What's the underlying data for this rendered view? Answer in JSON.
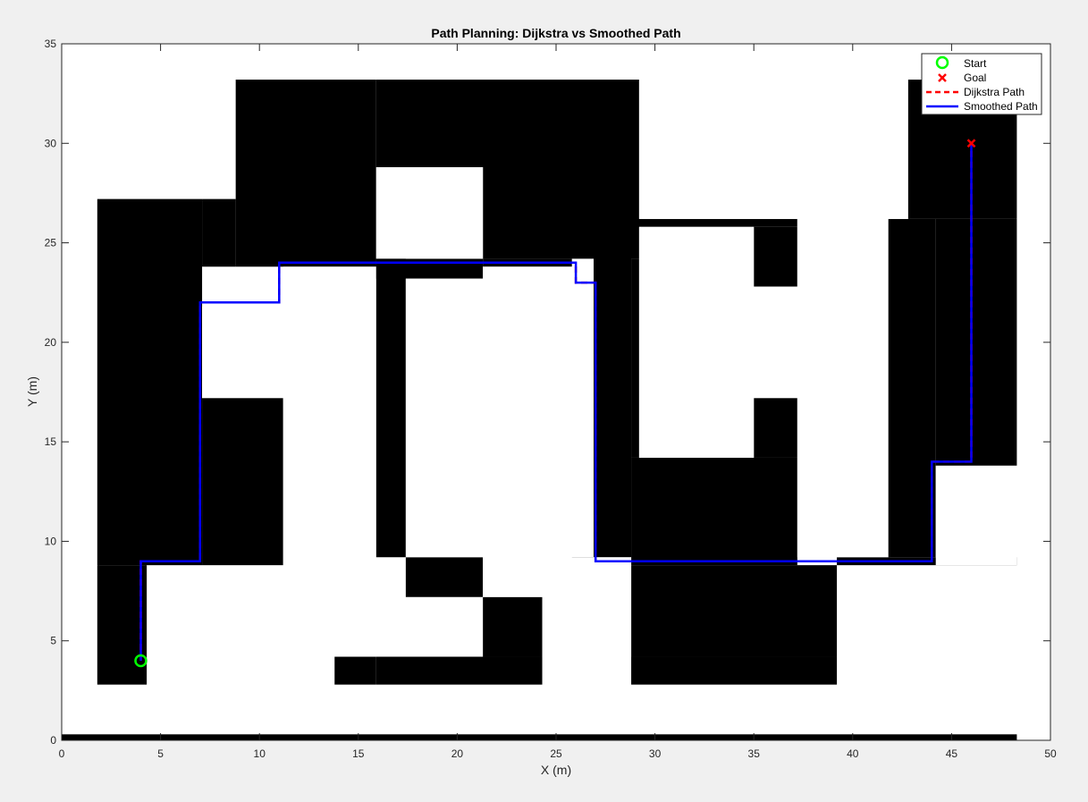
{
  "chart_data": {
    "type": "line",
    "title": "Path Planning: Dijkstra vs Smoothed Path",
    "xlabel": "X (m)",
    "ylabel": "Y (m)",
    "xlim": [
      0,
      50
    ],
    "ylim": [
      0,
      35
    ],
    "xticks": [
      0,
      5,
      10,
      15,
      20,
      25,
      30,
      35,
      40,
      45,
      50
    ],
    "yticks": [
      0,
      5,
      10,
      15,
      20,
      25,
      30,
      35
    ],
    "grid": false,
    "legend_position": "top-right",
    "background_image": "binary occupancy map (black = obstacle, white = free)",
    "obstacles": [
      {
        "x": [
          0,
          48.3
        ],
        "y": [
          -0.3,
          0.3
        ]
      },
      {
        "x": [
          1.8,
          4.3
        ],
        "y": [
          2.8,
          8.8
        ]
      },
      {
        "x": [
          1.8,
          7.1
        ],
        "y": [
          8.8,
          27.2
        ]
      },
      {
        "x": [
          7.1,
          11.2
        ],
        "y": [
          8.8,
          17.2
        ]
      },
      {
        "x": [
          7.1,
          8.8
        ],
        "y": [
          23.8,
          27.2
        ]
      },
      {
        "x": [
          8.8,
          15.9
        ],
        "y": [
          23.8,
          33.2
        ]
      },
      {
        "x": [
          15.9,
          29.2
        ],
        "y": [
          28.8,
          33.2
        ]
      },
      {
        "x": [
          15.9,
          17.4
        ],
        "y": [
          9.2,
          28.8
        ]
      },
      {
        "x": [
          15.9,
          21.3
        ],
        "y": [
          23.2,
          24.2
        ]
      },
      {
        "x": [
          17.4,
          21.3
        ],
        "y": [
          7.2,
          9.2
        ]
      },
      {
        "x": [
          21.3,
          24.3
        ],
        "y": [
          4.2,
          7.2
        ]
      },
      {
        "x": [
          15.9,
          24.3
        ],
        "y": [
          2.8,
          4.2
        ]
      },
      {
        "x": [
          13.8,
          15.9
        ],
        "y": [
          2.8,
          4.2
        ]
      },
      {
        "x": [
          28.8,
          39.2
        ],
        "y": [
          2.8,
          4.2
        ]
      },
      {
        "x": [
          28.8,
          39.2
        ],
        "y": [
          4.2,
          8.8
        ]
      },
      {
        "x": [
          25.8,
          28.8
        ],
        "y": [
          8.8,
          9.2
        ]
      },
      {
        "x": [
          39.2,
          48.3
        ],
        "y": [
          8.8,
          9.2
        ]
      },
      {
        "x": [
          28.8,
          37.2
        ],
        "y": [
          8.8,
          14.2
        ]
      },
      {
        "x": [
          35.0,
          37.2
        ],
        "y": [
          14.2,
          17.2
        ]
      },
      {
        "x": [
          28.8,
          29.2
        ],
        "y": [
          14.2,
          24.2
        ]
      },
      {
        "x": [
          26.9,
          28.8
        ],
        "y": [
          9.2,
          25.8
        ]
      },
      {
        "x": [
          28.8,
          37.2
        ],
        "y": [
          25.8,
          26.2
        ]
      },
      {
        "x": [
          35.0,
          37.2
        ],
        "y": [
          22.8,
          25.8
        ]
      },
      {
        "x": [
          21.3,
          29.2
        ],
        "y": [
          24.2,
          28.8
        ]
      },
      {
        "x": [
          21.3,
          25.8
        ],
        "y": [
          23.8,
          24.2
        ]
      },
      {
        "x": [
          21.3,
          21.3
        ],
        "y": [
          23.2,
          24.2
        ]
      },
      {
        "x": [
          41.8,
          44.2
        ],
        "y": [
          9.2,
          26.2
        ]
      },
      {
        "x": [
          42.8,
          48.3
        ],
        "y": [
          26.2,
          33.2
        ]
      },
      {
        "x": [
          44.2,
          48.3
        ],
        "y": [
          13.8,
          26.2
        ]
      }
    ],
    "free_space": [
      {
        "x": [
          15.9,
          21.3
        ],
        "y": [
          24.2,
          28.8
        ]
      },
      {
        "x": [
          11.2,
          15.9
        ],
        "y": [
          4.2,
          23.8
        ]
      },
      {
        "x": [
          7.1,
          11.2
        ],
        "y": [
          17.2,
          21.8
        ]
      },
      {
        "x": [
          17.4,
          25.8
        ],
        "y": [
          9.2,
          23.2
        ]
      },
      {
        "x": [
          21.3,
          25.8
        ],
        "y": [
          23.2,
          23.8
        ]
      },
      {
        "x": [
          21.3,
          28.8
        ],
        "y": [
          7.2,
          9.2
        ]
      },
      {
        "x": [
          24.3,
          28.8
        ],
        "y": [
          4.2,
          7.2
        ]
      },
      {
        "x": [
          29.2,
          35.0
        ],
        "y": [
          14.2,
          25.8
        ]
      },
      {
        "x": [
          35.0,
          37.2
        ],
        "y": [
          17.2,
          22.8
        ]
      },
      {
        "x": [
          37.2,
          41.8
        ],
        "y": [
          9.2,
          26.2
        ]
      },
      {
        "x": [
          29.2,
          42.8
        ],
        "y": [
          26.2,
          33.2
        ]
      },
      {
        "x": [
          44.2,
          48.3
        ],
        "y": [
          8.8,
          13.8
        ]
      }
    ],
    "series": [
      {
        "name": "Start",
        "marker": "o",
        "color": "#00ff00",
        "x": [
          4
        ],
        "y": [
          4
        ]
      },
      {
        "name": "Goal",
        "marker": "x",
        "color": "#ff0000",
        "x": [
          46
        ],
        "y": [
          30
        ]
      },
      {
        "name": "Dijkstra Path",
        "style": "dashed",
        "color": "#ff0000",
        "x": [
          4,
          4,
          7,
          7,
          11,
          11,
          26,
          26,
          27,
          27,
          44,
          44,
          46,
          46
        ],
        "y": [
          4,
          9,
          9,
          22,
          22,
          24,
          24,
          23,
          23,
          9,
          9,
          14,
          14,
          30
        ]
      },
      {
        "name": "Smoothed Path",
        "style": "solid",
        "color": "#0000ff",
        "x": [
          4,
          4,
          7,
          7,
          11,
          11,
          26,
          26,
          27,
          27,
          44,
          44,
          46,
          46
        ],
        "y": [
          4,
          9,
          9,
          22,
          22,
          24,
          24,
          23,
          23,
          9,
          9,
          14,
          14,
          30
        ]
      }
    ]
  },
  "colors": {
    "figure_bg": "#f0f0f0",
    "axes_bg": "#ffffff",
    "obstacle": "#000000",
    "start": "#00ff00",
    "goal": "#ff0000",
    "dijkstra": "#ff0000",
    "smoothed": "#0000ff"
  }
}
